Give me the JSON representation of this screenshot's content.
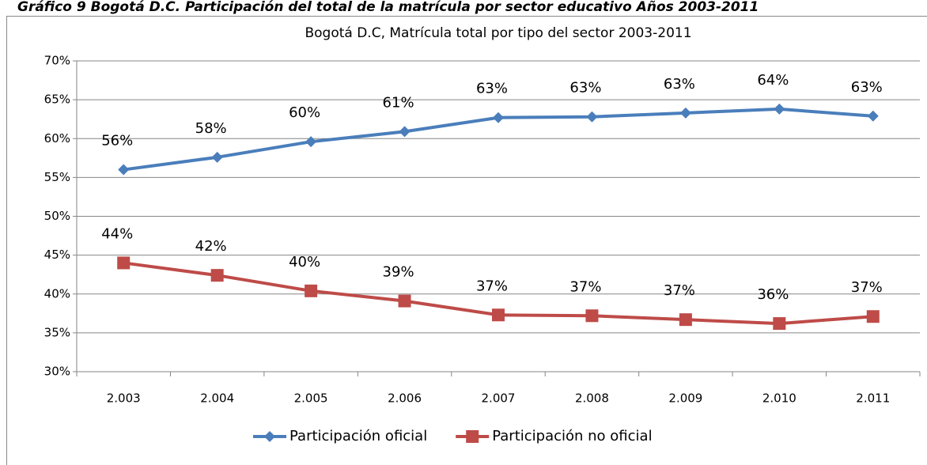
{
  "chart_data": {
    "type": "line",
    "caption": "Gráfico 9 Bogotá D.C. Participación del total de la matrícula por sector educativo Años 2003-2011",
    "title": "Bogotá D.C, Matrícula total por tipo del sector 2003-2011",
    "categories": [
      "2.003",
      "2.004",
      "2.005",
      "2.006",
      "2.007",
      "2.008",
      "2.009",
      "2.010",
      "2.011"
    ],
    "series": [
      {
        "name": "Participación oficial",
        "color": "#4a7ebb",
        "marker": "diamond",
        "values": [
          56.0,
          57.6,
          59.6,
          60.9,
          62.7,
          62.8,
          63.3,
          63.8,
          62.9
        ],
        "value_labels": [
          "56%",
          "58%",
          "60%",
          "61%",
          "63%",
          "63%",
          "63%",
          "64%",
          "63%"
        ]
      },
      {
        "name": "Participación no oficial",
        "color": "#be4b48",
        "marker": "square",
        "values": [
          44.0,
          42.4,
          40.4,
          39.1,
          37.3,
          37.2,
          36.7,
          36.2,
          37.1
        ],
        "value_labels": [
          "44%",
          "42%",
          "40%",
          "39%",
          "37%",
          "37%",
          "37%",
          "36%",
          "37%"
        ]
      }
    ],
    "ylim": [
      30,
      70
    ],
    "yticks": [
      {
        "value": 30,
        "label": "30%"
      },
      {
        "value": 35,
        "label": "35%"
      },
      {
        "value": 40,
        "label": "40%"
      },
      {
        "value": 45,
        "label": "45%"
      },
      {
        "value": 50,
        "label": "50%"
      },
      {
        "value": 55,
        "label": "55%"
      },
      {
        "value": 60,
        "label": "60%"
      },
      {
        "value": 65,
        "label": "65%"
      },
      {
        "value": 70,
        "label": "70%"
      }
    ],
    "grid": true,
    "legend": "bottom"
  }
}
